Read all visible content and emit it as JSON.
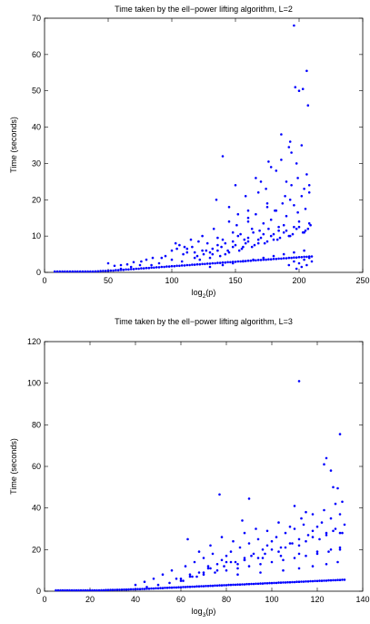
{
  "chart_data": [
    {
      "type": "scatter",
      "title": "Time taken by the ell−power lifting algorithm, L=2",
      "xlabel_main": "log",
      "xlabel_sub": "2",
      "xlabel_tail": "(p)",
      "ylabel": "Time (seconds)",
      "xlim": [
        0,
        250
      ],
      "ylim": [
        0,
        70
      ],
      "xticks": [
        "0",
        "50",
        "100",
        "150",
        "200",
        "250"
      ],
      "yticks": [
        "0",
        "10",
        "20",
        "30",
        "40",
        "50",
        "60",
        "70"
      ],
      "grid": false,
      "marker_color": "#0000ff",
      "series": [
        {
          "x": [
            8,
            10,
            12,
            14,
            16,
            18,
            20,
            22,
            24,
            26,
            28,
            30,
            32,
            34,
            36,
            38,
            40,
            42,
            44,
            46,
            48,
            50,
            52,
            54,
            56,
            58,
            60,
            62,
            64,
            66,
            68,
            70,
            72,
            74,
            76,
            78,
            80,
            82,
            84,
            86,
            88,
            90,
            92,
            94,
            96,
            98,
            100,
            102,
            104,
            106,
            108,
            110,
            112,
            114,
            116,
            118,
            120,
            122,
            124,
            126,
            128,
            130,
            132,
            134,
            136,
            138,
            140,
            142,
            144,
            146,
            148,
            150,
            152,
            154,
            156,
            158,
            160,
            162,
            164,
            166,
            168,
            170,
            172,
            174,
            176,
            178,
            180,
            182,
            184,
            186,
            188,
            190,
            192,
            194,
            196,
            198,
            200,
            202,
            204,
            206,
            208,
            210,
            50,
            55,
            60,
            65,
            70,
            75,
            80,
            85,
            90,
            95,
            100,
            103,
            106,
            109,
            112,
            115,
            118,
            121,
            124,
            127,
            130,
            133,
            136,
            139,
            142,
            145,
            148,
            151,
            154,
            157,
            160,
            163,
            166,
            169,
            172,
            175,
            178,
            181,
            184,
            187,
            190,
            193,
            196,
            199,
            202,
            205,
            208,
            60,
            68,
            76,
            84,
            92,
            100,
            104,
            108,
            112,
            116,
            120,
            124,
            128,
            132,
            136,
            140,
            144,
            148,
            152,
            156,
            160,
            164,
            168,
            172,
            176,
            180,
            184,
            188,
            192,
            196,
            200,
            204,
            208,
            110,
            118,
            125,
            132,
            138,
            145,
            150,
            155,
            160,
            165,
            170,
            175,
            180,
            185,
            190,
            195,
            200,
            205,
            209,
            122,
            130,
            136,
            142,
            148,
            153,
            158,
            163,
            168,
            173,
            178,
            183,
            188,
            193,
            198,
            203,
            207,
            130,
            140,
            148,
            156,
            164,
            172,
            180,
            188,
            196,
            204,
            135,
            145,
            152,
            160,
            168,
            175,
            182,
            189,
            194,
            199,
            204,
            208,
            150,
            158,
            166,
            174,
            182,
            190,
            198,
            206,
            160,
            170,
            178,
            186,
            194,
            202,
            140,
            176,
            186,
            192,
            193,
            196,
            197,
            200,
            203,
            206,
            207,
            192,
            196,
            198,
            200,
            202,
            204,
            206,
            208,
            210
          ],
          "y": [
            0.05,
            0.05,
            0.06,
            0.06,
            0.07,
            0.08,
            0.08,
            0.09,
            0.1,
            0.12,
            0.14,
            0.16,
            0.18,
            0.2,
            0.22,
            0.25,
            0.28,
            0.3,
            0.35,
            0.4,
            0.4,
            0.45,
            0.5,
            0.5,
            0.6,
            0.6,
            0.7,
            0.7,
            0.8,
            0.8,
            0.9,
            0.9,
            1.0,
            1.0,
            1.1,
            1.1,
            1.2,
            1.2,
            1.3,
            1.3,
            1.4,
            1.4,
            1.5,
            1.5,
            1.6,
            1.6,
            1.7,
            1.7,
            1.8,
            1.8,
            1.9,
            1.9,
            2.0,
            2.0,
            2.1,
            2.1,
            2.2,
            2.2,
            2.3,
            2.3,
            2.4,
            2.4,
            2.5,
            2.5,
            2.6,
            2.6,
            2.7,
            2.7,
            2.8,
            2.8,
            2.9,
            2.9,
            3.0,
            3.0,
            3.1,
            3.1,
            3.2,
            3.2,
            3.3,
            3.3,
            3.4,
            3.4,
            3.5,
            3.5,
            3.6,
            3.6,
            3.7,
            3.7,
            3.8,
            3.8,
            3.9,
            3.9,
            4.0,
            4.0,
            4.1,
            4.1,
            4.2,
            4.2,
            4.3,
            4.3,
            4.4,
            4.4,
            2.5,
            1.8,
            2.0,
            2.2,
            2.8,
            2.0,
            3.5,
            4.0,
            2.5,
            4.5,
            6.0,
            8.0,
            7.5,
            5.0,
            6.5,
            9.0,
            4.0,
            8.5,
            10.0,
            6.0,
            5.5,
            12.0,
            9.5,
            7.0,
            8.0,
            14.0,
            11.0,
            13.0,
            10.5,
            9.0,
            15.0,
            12.0,
            16.0,
            11.5,
            13.5,
            18.0,
            14.5,
            17.0,
            12.5,
            19.0,
            15.5,
            20.0,
            18.5,
            16.5,
            21.0,
            17.5,
            22.0,
            1.0,
            1.5,
            3.0,
            2.0,
            4.0,
            3.5,
            6.5,
            3.0,
            5.5,
            7.0,
            4.5,
            6.0,
            8.0,
            5.0,
            7.5,
            9.0,
            6.0,
            8.5,
            10.0,
            7.0,
            9.5,
            11.0,
            8.0,
            10.5,
            12.0,
            9.0,
            11.5,
            13.0,
            10.0,
            12.5,
            14.0,
            11.0,
            13.5,
            7.0,
            5.5,
            5.0,
            6.5,
            4.5,
            5.5,
            7.5,
            6.5,
            8.5,
            7.5,
            9.5,
            8.5,
            10.5,
            9.5,
            11.5,
            10.5,
            12.5,
            11.5,
            13.0,
            3.5,
            4.0,
            6.0,
            5.0,
            7.0,
            6.0,
            8.0,
            7.0,
            9.0,
            8.0,
            10.0,
            9.0,
            11.0,
            10.0,
            12.0,
            11.0,
            12.0,
            1.5,
            2.0,
            2.5,
            3.0,
            3.5,
            4.0,
            4.5,
            5.0,
            5.5,
            6.0,
            20.0,
            18.0,
            16.0,
            14.0,
            22.0,
            19.0,
            17.0,
            21.0,
            24.0,
            26.0,
            23.0,
            24.0,
            24.0,
            21.0,
            26.0,
            23.0,
            28.0,
            25.0,
            30.0,
            27.0,
            17.0,
            25.0,
            29.0,
            31.0,
            33.0,
            35.0,
            32.0,
            30.5,
            38.0,
            34.5,
            36.0,
            68.0,
            51.0,
            50.0,
            50.5,
            55.5,
            46.0,
            2.0,
            3.0,
            1.0,
            2.5,
            1.5,
            3.5,
            2.0,
            4.0,
            3.0
          ]
        }
      ]
    },
    {
      "type": "scatter",
      "title": "Time taken by the ell−power lifting algorithm, L=3",
      "xlabel_main": "log",
      "xlabel_sub": "3",
      "xlabel_tail": "(p)",
      "ylabel": "Time (seconds)",
      "xlim": [
        0,
        140
      ],
      "ylim": [
        0,
        120
      ],
      "xticks": [
        "0",
        "20",
        "40",
        "60",
        "80",
        "100",
        "120",
        "140"
      ],
      "yticks": [
        "0",
        "20",
        "40",
        "60",
        "80",
        "100",
        "120"
      ],
      "grid": false,
      "marker_color": "#0000ff",
      "series": [
        {
          "x": [
            5,
            6,
            7,
            8,
            9,
            10,
            11,
            12,
            13,
            14,
            15,
            16,
            17,
            18,
            19,
            20,
            21,
            22,
            23,
            24,
            25,
            26,
            27,
            28,
            29,
            30,
            31,
            32,
            33,
            34,
            35,
            36,
            37,
            38,
            39,
            40,
            41,
            42,
            43,
            44,
            45,
            46,
            47,
            48,
            49,
            50,
            51,
            52,
            53,
            54,
            55,
            56,
            57,
            58,
            59,
            60,
            61,
            62,
            63,
            64,
            65,
            66,
            67,
            68,
            69,
            70,
            71,
            72,
            73,
            74,
            75,
            76,
            77,
            78,
            79,
            80,
            81,
            82,
            83,
            84,
            85,
            86,
            87,
            88,
            89,
            90,
            91,
            92,
            93,
            94,
            95,
            96,
            97,
            98,
            99,
            100,
            101,
            102,
            103,
            104,
            105,
            106,
            107,
            108,
            109,
            110,
            111,
            112,
            113,
            114,
            115,
            116,
            117,
            118,
            119,
            120,
            121,
            122,
            123,
            124,
            125,
            126,
            127,
            128,
            129,
            130,
            131,
            132,
            40,
            44,
            48,
            52,
            56,
            60,
            62,
            64,
            66,
            68,
            70,
            72,
            74,
            76,
            78,
            80,
            82,
            84,
            86,
            88,
            90,
            92,
            94,
            96,
            98,
            100,
            102,
            104,
            106,
            108,
            110,
            112,
            114,
            116,
            118,
            120,
            122,
            124,
            126,
            128,
            130,
            132,
            45,
            50,
            55,
            58,
            61,
            64,
            67,
            70,
            73,
            76,
            79,
            82,
            85,
            88,
            91,
            94,
            97,
            100,
            103,
            106,
            109,
            112,
            115,
            118,
            121,
            124,
            127,
            130,
            63,
            68,
            73,
            78,
            83,
            88,
            93,
            98,
            103,
            108,
            113,
            118,
            123,
            128,
            131,
            72,
            80,
            88,
            96,
            104,
            112,
            120,
            126,
            130,
            85,
            95,
            105,
            112,
            118,
            124,
            129,
            60,
            65,
            70,
            75,
            80,
            85,
            90,
            95,
            100,
            105,
            110,
            115,
            120,
            125,
            130,
            77,
            87,
            90,
            110,
            112,
            115,
            123,
            124,
            126,
            127,
            129,
            130,
            131
          ],
          "y": [
            0.1,
            0.1,
            0.1,
            0.15,
            0.15,
            0.15,
            0.2,
            0.2,
            0.2,
            0.25,
            0.25,
            0.3,
            0.3,
            0.3,
            0.35,
            0.35,
            0.4,
            0.4,
            0.45,
            0.45,
            0.5,
            0.5,
            0.55,
            0.55,
            0.6,
            0.6,
            0.65,
            0.7,
            0.7,
            0.75,
            0.8,
            0.8,
            0.85,
            0.9,
            0.9,
            0.95,
            1.0,
            1.0,
            1.1,
            1.1,
            1.2,
            1.2,
            1.3,
            1.3,
            1.4,
            1.4,
            1.5,
            1.5,
            1.6,
            1.6,
            1.7,
            1.7,
            1.8,
            1.8,
            1.9,
            1.9,
            2.0,
            2.0,
            2.1,
            2.1,
            2.2,
            2.2,
            2.3,
            2.3,
            2.4,
            2.4,
            2.5,
            2.5,
            2.6,
            2.6,
            2.7,
            2.7,
            2.8,
            2.8,
            2.9,
            2.9,
            3.0,
            3.0,
            3.1,
            3.1,
            3.2,
            3.2,
            3.3,
            3.3,
            3.4,
            3.4,
            3.5,
            3.5,
            3.6,
            3.6,
            3.7,
            3.7,
            3.8,
            3.8,
            3.9,
            3.9,
            4.0,
            4.0,
            4.1,
            4.1,
            4.2,
            4.2,
            4.3,
            4.3,
            4.4,
            4.4,
            4.5,
            4.5,
            4.6,
            4.6,
            4.7,
            4.7,
            4.8,
            4.8,
            4.9,
            4.9,
            5.0,
            5.0,
            5.1,
            5.1,
            5.2,
            5.2,
            5.3,
            5.3,
            5.4,
            5.4,
            5.5,
            5.5,
            3.0,
            4.5,
            6.0,
            8.0,
            10.0,
            5.0,
            12.0,
            7.0,
            14.0,
            9.0,
            16.0,
            11.0,
            18.0,
            13.0,
            15.0,
            17.0,
            19.0,
            14.0,
            21.0,
            16.0,
            23.0,
            18.0,
            25.0,
            20.0,
            22.0,
            24.0,
            26.0,
            21.0,
            28.0,
            23.0,
            30.0,
            25.0,
            32.0,
            27.0,
            29.0,
            31.0,
            33.0,
            28.0,
            35.0,
            30.0,
            37.0,
            32.0,
            2.0,
            3.0,
            4.0,
            6.0,
            5.0,
            8.0,
            7.0,
            9.0,
            11.0,
            10.0,
            12.0,
            14.0,
            13.0,
            15.0,
            17.0,
            16.0,
            18.0,
            20.0,
            19.0,
            21.0,
            23.0,
            22.0,
            24.0,
            26.0,
            25.0,
            27.0,
            29.0,
            28.0,
            25.0,
            19.0,
            22.0,
            26.0,
            24.0,
            28.0,
            30.0,
            29.0,
            33.0,
            31.0,
            35.0,
            37.0,
            39.0,
            42.0,
            43.0,
            12.0,
            14.0,
            15.0,
            16.0,
            17.0,
            18.0,
            19.0,
            20.0,
            21.0,
            8.0,
            9.0,
            10.0,
            11.0,
            12.0,
            13.0,
            14.0,
            6.0,
            7.0,
            8.0,
            9.0,
            10.0,
            11.0,
            12.0,
            13.0,
            14.0,
            15.0,
            16.0,
            17.0,
            18.0,
            19.0,
            20.0,
            46.5,
            34.0,
            44.5,
            41.0,
            101.0,
            38.0,
            61.0,
            64.0,
            58.0,
            50.0,
            49.5,
            75.5,
            28.0
          ]
        }
      ]
    }
  ]
}
